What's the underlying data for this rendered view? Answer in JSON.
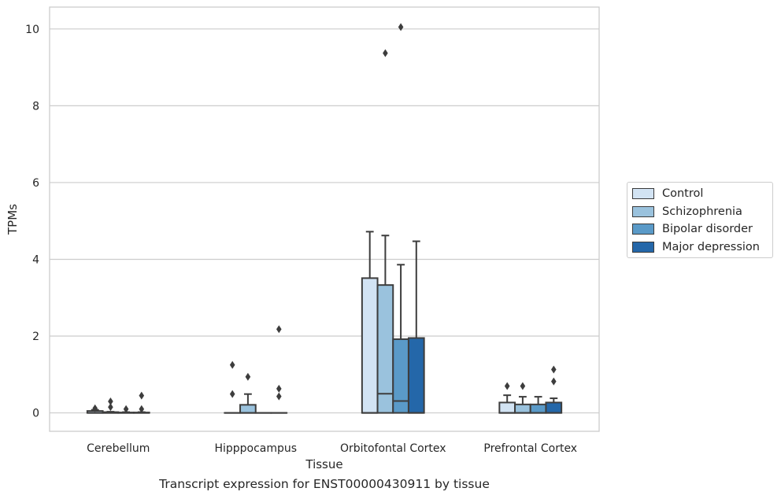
{
  "chart_data": {
    "type": "box",
    "xlabel": "Tissue",
    "ylabel": "TPMs",
    "caption": "Transcript expression for ENST00000430911 by tissue",
    "ylim": [
      -0.48,
      10.57
    ],
    "yticks": [
      0,
      2,
      4,
      6,
      8,
      10
    ],
    "grid": true,
    "legend_position": "right",
    "categories": [
      "Cerebellum",
      "Hipppocampus",
      "Orbitofontal Cortex",
      "Prefrontal Cortex"
    ],
    "series": [
      {
        "name": "Control",
        "color": "#d2e3f3",
        "boxes": [
          {
            "q1": 0,
            "median": 0,
            "q3": 0.05,
            "whisker_low": 0,
            "whisker_high": 0.08,
            "outliers": [
              0.12
            ]
          },
          {
            "q1": 0,
            "median": 0,
            "q3": 0,
            "whisker_low": 0,
            "whisker_high": 0,
            "outliers": [
              1.25,
              0.49
            ]
          },
          {
            "q1": 0,
            "median": 0,
            "q3": 3.51,
            "whisker_low": 0,
            "whisker_high": 4.72,
            "outliers": []
          },
          {
            "q1": 0,
            "median": 0,
            "q3": 0.27,
            "whisker_low": 0,
            "whisker_high": 0.46,
            "outliers": [
              0.7
            ]
          }
        ]
      },
      {
        "name": "Schizophrenia",
        "color": "#9ac2dd",
        "boxes": [
          {
            "q1": 0,
            "median": 0,
            "q3": 0.02,
            "whisker_low": 0,
            "whisker_high": 0.03,
            "outliers": [
              0.3,
              0.15
            ]
          },
          {
            "q1": 0,
            "median": 0,
            "q3": 0.21,
            "whisker_low": 0,
            "whisker_high": 0.49,
            "outliers": [
              0.94
            ]
          },
          {
            "q1": 0,
            "median": 0.5,
            "q3": 3.33,
            "whisker_low": 0,
            "whisker_high": 4.62,
            "outliers": [
              9.37
            ]
          },
          {
            "q1": 0,
            "median": 0,
            "q3": 0.22,
            "whisker_low": 0,
            "whisker_high": 0.42,
            "outliers": [
              0.7
            ]
          }
        ]
      },
      {
        "name": "Bipolar disorder",
        "color": "#5a9ac8",
        "boxes": [
          {
            "q1": 0,
            "median": 0,
            "q3": 0.01,
            "whisker_low": 0,
            "whisker_high": 0.02,
            "outliers": [
              0.1
            ]
          },
          {
            "q1": 0,
            "median": 0,
            "q3": 0,
            "whisker_low": 0,
            "whisker_high": 0,
            "outliers": []
          },
          {
            "q1": 0,
            "median": 0.31,
            "q3": 1.92,
            "whisker_low": 0,
            "whisker_high": 3.86,
            "outliers": [
              10.05
            ]
          },
          {
            "q1": 0,
            "median": 0,
            "q3": 0.22,
            "whisker_low": 0,
            "whisker_high": 0.42,
            "outliers": []
          }
        ]
      },
      {
        "name": "Major depression",
        "color": "#2467a9",
        "boxes": [
          {
            "q1": 0,
            "median": 0,
            "q3": 0.01,
            "whisker_low": 0,
            "whisker_high": 0.02,
            "outliers": [
              0.45,
              0.1
            ]
          },
          {
            "q1": 0,
            "median": 0,
            "q3": 0,
            "whisker_low": 0,
            "whisker_high": 0,
            "outliers": [
              2.18,
              0.63,
              0.43
            ]
          },
          {
            "q1": 0,
            "median": 0,
            "q3": 1.95,
            "whisker_low": 0,
            "whisker_high": 4.47,
            "outliers": []
          },
          {
            "q1": 0,
            "median": 0,
            "q3": 0.27,
            "whisker_low": 0,
            "whisker_high": 0.38,
            "outliers": [
              1.13,
              0.82
            ]
          }
        ]
      }
    ]
  }
}
